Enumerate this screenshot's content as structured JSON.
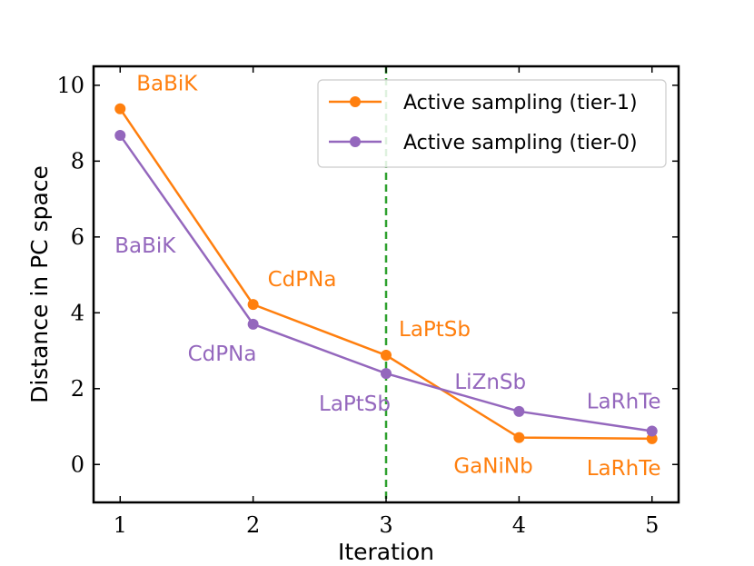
{
  "chart_data": {
    "type": "line",
    "title": "",
    "xlabel": "Iteration",
    "ylabel": "Distance in PC space",
    "xlim": [
      0.8,
      5.2
    ],
    "ylim": [
      -1.0,
      10.5
    ],
    "xticks": [
      1,
      2,
      3,
      4,
      5
    ],
    "xtick_labels": [
      "1",
      "2",
      "3",
      "4",
      "5"
    ],
    "yticks": [
      0,
      2,
      4,
      6,
      8,
      10
    ],
    "ytick_labels": [
      "0",
      "2",
      "4",
      "6",
      "8",
      "10"
    ],
    "grid": false,
    "legend_position": "upper-right",
    "vline": {
      "x": 3,
      "color": "#2ca02c",
      "style": "dashed"
    },
    "series": [
      {
        "name": "Active sampling (tier-1)",
        "color": "#ff7f0e",
        "x": [
          1,
          2,
          3,
          4,
          5
        ],
        "values": [
          9.38,
          4.22,
          2.88,
          0.71,
          0.68
        ],
        "point_labels": [
          "BaBiK",
          "CdPNa",
          "LaPtSb",
          "GaNiNb",
          "LaRhTe"
        ]
      },
      {
        "name": "Active sampling (tier-0)",
        "color": "#9467bd",
        "x": [
          1,
          2,
          3,
          4,
          5
        ],
        "values": [
          8.68,
          3.7,
          2.4,
          1.4,
          0.88
        ],
        "point_labels": [
          "BaBiK",
          "CdPNa",
          "LaPtSb",
          "LiZnSb",
          "LaRhTe"
        ]
      }
    ]
  }
}
